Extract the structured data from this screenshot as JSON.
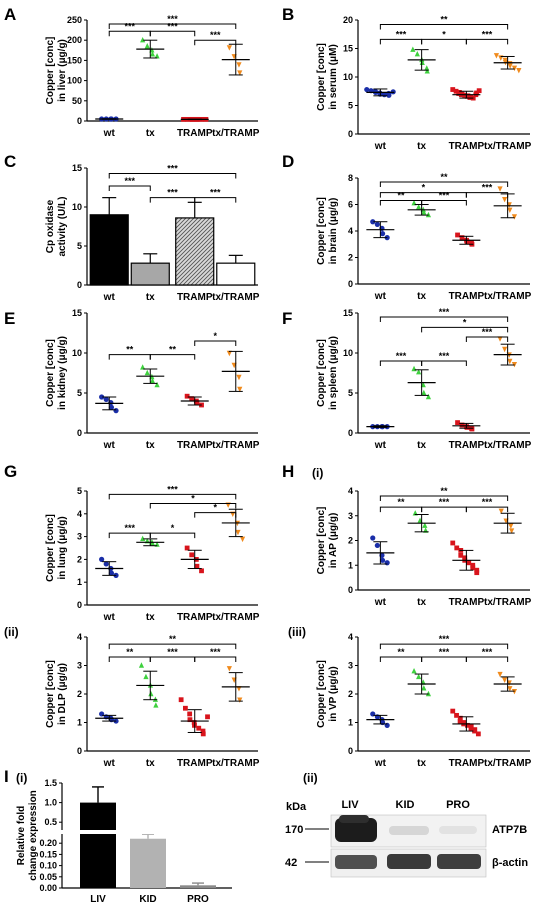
{
  "colors": {
    "wt": "#1a2ea8",
    "tx": "#3ed13e",
    "TRAMP": "#d8141c",
    "tx/TRAMP": "#f08a1c"
  },
  "chart_data": [
    {
      "id": "A",
      "type": "scatter",
      "panel_label": "A",
      "sub_label": "",
      "ylabel": [
        "Copper [conc]",
        "in liver (μg/g)"
      ],
      "categories": [
        "wt",
        "tx",
        "TRAMP",
        "tx/TRAMP"
      ],
      "ylim": [
        0,
        250
      ],
      "yticks": [
        0,
        50,
        100,
        150,
        200,
        250
      ],
      "groups": [
        {
          "name": "wt",
          "mean": 5,
          "sd": 0.5,
          "points": [
            5,
            5,
            5,
            5,
            5
          ]
        },
        {
          "name": "tx",
          "mean": 178,
          "sd": 22,
          "points": [
            200,
            185,
            175,
            165,
            160
          ]
        },
        {
          "name": "TRAMP",
          "mean": 4,
          "sd": 0.5,
          "points": [
            4,
            4,
            4,
            4,
            4,
            4,
            4,
            4
          ]
        },
        {
          "name": "tx/TRAMP",
          "mean": 152,
          "sd": 38,
          "points": [
            182,
            160,
            140,
            120
          ]
        }
      ],
      "brackets": [
        {
          "from": 0,
          "to": 3,
          "y": 240,
          "label": "***"
        },
        {
          "from": 0,
          "to": 1,
          "y": 222,
          "label": "***"
        },
        {
          "from": 1,
          "to": 2,
          "y": 222,
          "label": "***"
        },
        {
          "from": 2,
          "to": 3,
          "y": 200,
          "label": "***"
        }
      ]
    },
    {
      "id": "B",
      "type": "scatter",
      "panel_label": "B",
      "sub_label": "",
      "ylabel": [
        "Copper [conc]",
        "in serum (μM)"
      ],
      "categories": [
        "wt",
        "tx",
        "TRAMP",
        "tx/TRAMP"
      ],
      "ylim": [
        0,
        20
      ],
      "yticks": [
        0,
        5,
        10,
        15,
        20
      ],
      "groups": [
        {
          "name": "wt",
          "mean": 7.3,
          "sd": 0.6,
          "points": [
            7.8,
            7.6,
            7.5,
            7.3,
            7.2,
            7,
            6.9,
            7.1,
            6.8,
            7.4
          ]
        },
        {
          "name": "tx",
          "mean": 13,
          "sd": 1.8,
          "points": [
            14.8,
            14,
            13,
            12.5,
            11.5,
            11
          ]
        },
        {
          "name": "TRAMP",
          "mean": 6.9,
          "sd": 0.6,
          "points": [
            7.8,
            7.5,
            7.3,
            7.1,
            7,
            6.9,
            6.8,
            6.7,
            6.6,
            6.5,
            6.4,
            6.3,
            7.2,
            6.9,
            7.6
          ]
        },
        {
          "name": "tx/TRAMP",
          "mean": 12.5,
          "sd": 1.1,
          "points": [
            13.8,
            13.4,
            13,
            12.6,
            12.4,
            12,
            11.6,
            11.2
          ]
        }
      ],
      "brackets": [
        {
          "from": 0,
          "to": 3,
          "y": 19.2,
          "label": "**"
        },
        {
          "from": 0,
          "to": 1,
          "y": 16.6,
          "label": "***"
        },
        {
          "from": 1,
          "to": 2,
          "y": 16.6,
          "label": "*"
        },
        {
          "from": 2,
          "to": 3,
          "y": 16.6,
          "label": "***"
        }
      ]
    },
    {
      "id": "C",
      "type": "bar",
      "panel_label": "C",
      "sub_label": "",
      "ylabel": [
        "Cp oxidase",
        "activity (U/L)"
      ],
      "categories": [
        "wt",
        "tx",
        "TRAMP",
        "tx/TRAMP"
      ],
      "ylim": [
        0,
        15
      ],
      "yticks": [
        0,
        5,
        10,
        15
      ],
      "values": [
        9,
        2.8,
        8.6,
        2.8
      ],
      "errors": [
        2.2,
        1.2,
        2.0,
        1.0
      ],
      "brackets": [
        {
          "from": 0,
          "to": 3,
          "y": 14.3,
          "label": "***"
        },
        {
          "from": 0,
          "to": 1,
          "y": 12.7,
          "label": "***"
        },
        {
          "from": 1,
          "to": 2,
          "y": 11.2,
          "label": "***"
        },
        {
          "from": 2,
          "to": 3,
          "y": 11.2,
          "label": "***"
        }
      ]
    },
    {
      "id": "D",
      "type": "scatter",
      "panel_label": "D",
      "sub_label": "",
      "ylabel": [
        "Copper [conc]",
        "in brain (μg/g)"
      ],
      "categories": [
        "wt",
        "tx",
        "TRAMP",
        "tx/TRAMP"
      ],
      "ylim": [
        0,
        8
      ],
      "yticks": [
        0,
        2,
        4,
        6,
        8
      ],
      "groups": [
        {
          "name": "wt",
          "mean": 4.1,
          "sd": 0.6,
          "points": [
            4.7,
            4.5,
            4.2,
            3.8,
            3.5
          ]
        },
        {
          "name": "tx",
          "mean": 5.6,
          "sd": 0.4,
          "points": [
            6.1,
            5.8,
            5.6,
            5.4,
            5.2
          ]
        },
        {
          "name": "TRAMP",
          "mean": 3.3,
          "sd": 0.3,
          "points": [
            3.7,
            3.5,
            3.3,
            3.2,
            3.1,
            3.0
          ]
        },
        {
          "name": "tx/TRAMP",
          "mean": 5.9,
          "sd": 0.9,
          "points": [
            7.2,
            6.4,
            6,
            5.6,
            5.1
          ]
        }
      ],
      "brackets": [
        {
          "from": 0,
          "to": 3,
          "y": 7.7,
          "label": "**"
        },
        {
          "from": 0,
          "to": 2,
          "y": 6.9,
          "label": "*"
        },
        {
          "from": 2,
          "to": 3,
          "y": 6.9,
          "label": "***"
        },
        {
          "from": 0,
          "to": 1,
          "y": 6.3,
          "label": "**"
        },
        {
          "from": 1,
          "to": 2,
          "y": 6.3,
          "label": "***"
        }
      ]
    },
    {
      "id": "E",
      "type": "scatter",
      "panel_label": "E",
      "sub_label": "",
      "ylabel": [
        "Copper [conc]",
        "in kidney (μg/g)"
      ],
      "categories": [
        "wt",
        "tx",
        "TRAMP",
        "tx/TRAMP"
      ],
      "ylim": [
        0,
        15
      ],
      "yticks": [
        0,
        5,
        10,
        15
      ],
      "groups": [
        {
          "name": "wt",
          "mean": 3.7,
          "sd": 0.8,
          "points": [
            4.5,
            4.2,
            3.8,
            3.2,
            2.8
          ]
        },
        {
          "name": "tx",
          "mean": 7.1,
          "sd": 0.9,
          "points": [
            8.2,
            7.5,
            7,
            6.5,
            6
          ]
        },
        {
          "name": "TRAMP",
          "mean": 4,
          "sd": 0.5,
          "points": [
            4.6,
            4.3,
            4,
            3.8,
            3.5
          ]
        },
        {
          "name": "tx/TRAMP",
          "mean": 7.7,
          "sd": 2.5,
          "points": [
            10,
            8.5,
            7,
            5.5
          ]
        }
      ],
      "brackets": [
        {
          "from": 0,
          "to": 1,
          "y": 9.8,
          "label": "**"
        },
        {
          "from": 1,
          "to": 2,
          "y": 9.8,
          "label": "**"
        },
        {
          "from": 2,
          "to": 3,
          "y": 11.5,
          "label": "*"
        }
      ]
    },
    {
      "id": "F",
      "type": "scatter",
      "panel_label": "F",
      "sub_label": "",
      "ylabel": [
        "Copper [conc]",
        "in spleen (μg/g)"
      ],
      "categories": [
        "wt",
        "tx",
        "TRAMP",
        "tx/TRAMP"
      ],
      "ylim": [
        0,
        15
      ],
      "yticks": [
        0,
        5,
        10,
        15
      ],
      "groups": [
        {
          "name": "wt",
          "mean": 0.8,
          "sd": 0.1,
          "points": [
            0.8,
            0.8,
            0.8,
            0.8,
            0.8
          ]
        },
        {
          "name": "tx",
          "mean": 6.3,
          "sd": 1.6,
          "points": [
            8,
            7.6,
            6,
            5,
            4.5
          ]
        },
        {
          "name": "TRAMP",
          "mean": 0.9,
          "sd": 0.3,
          "points": [
            1.3,
            1,
            0.8,
            0.7,
            0.6,
            0.5
          ]
        },
        {
          "name": "tx/TRAMP",
          "mean": 9.8,
          "sd": 1.3,
          "points": [
            11.8,
            10.5,
            9.8,
            9,
            8.6
          ]
        }
      ],
      "brackets": [
        {
          "from": 0,
          "to": 3,
          "y": 14.5,
          "label": "***"
        },
        {
          "from": 1,
          "to": 3,
          "y": 13.2,
          "label": "*"
        },
        {
          "from": 2,
          "to": 3,
          "y": 12,
          "label": "***"
        },
        {
          "from": 0,
          "to": 1,
          "y": 9,
          "label": "***"
        },
        {
          "from": 1,
          "to": 2,
          "y": 9,
          "label": "***"
        }
      ]
    },
    {
      "id": "G",
      "type": "scatter",
      "panel_label": "G",
      "sub_label": "",
      "ylabel": [
        "Copper [conc]",
        "in lung (μg/g)"
      ],
      "categories": [
        "wt",
        "tx",
        "TRAMP",
        "tx/TRAMP"
      ],
      "ylim": [
        0,
        5
      ],
      "yticks": [
        0,
        1,
        2,
        3,
        4,
        5
      ],
      "groups": [
        {
          "name": "wt",
          "mean": 1.6,
          "sd": 0.3,
          "points": [
            2,
            1.8,
            1.6,
            1.4,
            1.3
          ]
        },
        {
          "name": "tx",
          "mean": 2.75,
          "sd": 0.15,
          "points": [
            2.9,
            2.8,
            2.75,
            2.7,
            2.65
          ]
        },
        {
          "name": "TRAMP",
          "mean": 2,
          "sd": 0.4,
          "points": [
            2.5,
            2.2,
            2,
            1.7,
            1.5
          ]
        },
        {
          "name": "tx/TRAMP",
          "mean": 3.6,
          "sd": 0.6,
          "points": [
            4.4,
            4,
            3.6,
            3.2,
            2.9
          ]
        }
      ],
      "brackets": [
        {
          "from": 0,
          "to": 3,
          "y": 4.85,
          "label": "***"
        },
        {
          "from": 1,
          "to": 3,
          "y": 4.45,
          "label": "*"
        },
        {
          "from": 2,
          "to": 3,
          "y": 4.05,
          "label": "*"
        },
        {
          "from": 0,
          "to": 1,
          "y": 3.15,
          "label": "***"
        },
        {
          "from": 1,
          "to": 2,
          "y": 3.15,
          "label": "*"
        }
      ]
    },
    {
      "id": "H",
      "type": "scatter",
      "panel_label": "H",
      "sub_label": "(i)",
      "ylabel": [
        "Copper [conc]",
        "in AP (μg/g)"
      ],
      "categories": [
        "wt",
        "tx",
        "TRAMP",
        "tx/TRAMP"
      ],
      "ylim": [
        0,
        4
      ],
      "yticks": [
        0,
        1,
        2,
        3,
        4
      ],
      "groups": [
        {
          "name": "wt",
          "mean": 1.5,
          "sd": 0.45,
          "points": [
            2.1,
            1.8,
            1.4,
            1.2,
            1.1
          ]
        },
        {
          "name": "tx",
          "mean": 2.7,
          "sd": 0.35,
          "points": [
            3.1,
            2.8,
            2.6,
            2.4
          ]
        },
        {
          "name": "TRAMP",
          "mean": 1.2,
          "sd": 0.4,
          "points": [
            1.9,
            1.7,
            1.6,
            1.4,
            1.3,
            1.2,
            1.1,
            1.0,
            0.9,
            0.8,
            0.7
          ]
        },
        {
          "name": "tx/TRAMP",
          "mean": 2.7,
          "sd": 0.4,
          "points": [
            3.2,
            2.8,
            2.6,
            2.4
          ]
        }
      ],
      "brackets": [
        {
          "from": 0,
          "to": 3,
          "y": 3.8,
          "label": "**"
        },
        {
          "from": 0,
          "to": 1,
          "y": 3.35,
          "label": "**"
        },
        {
          "from": 1,
          "to": 2,
          "y": 3.35,
          "label": "***"
        },
        {
          "from": 2,
          "to": 3,
          "y": 3.35,
          "label": "***"
        }
      ]
    },
    {
      "id": "Hii",
      "type": "scatter",
      "panel_label": "",
      "sub_label": "(ii)",
      "ylabel": [
        "Copper [conc]",
        "in DLP (μg/g)"
      ],
      "categories": [
        "wt",
        "tx",
        "TRAMP",
        "tx/TRAMP"
      ],
      "ylim": [
        0,
        4
      ],
      "yticks": [
        0,
        1,
        2,
        3,
        4
      ],
      "groups": [
        {
          "name": "wt",
          "mean": 1.15,
          "sd": 0.1,
          "points": [
            1.3,
            1.2,
            1.15,
            1.1,
            1.05
          ]
        },
        {
          "name": "tx",
          "mean": 2.3,
          "sd": 0.5,
          "points": [
            3,
            2.6,
            2.3,
            2,
            1.8,
            1.6
          ]
        },
        {
          "name": "TRAMP",
          "mean": 1.05,
          "sd": 0.4,
          "points": [
            1.8,
            1.5,
            1.3,
            1.1,
            1,
            0.9,
            0.8,
            0.7,
            0.6,
            1.2
          ]
        },
        {
          "name": "tx/TRAMP",
          "mean": 2.25,
          "sd": 0.5,
          "points": [
            2.9,
            2.5,
            2.2,
            1.8
          ]
        }
      ],
      "brackets": [
        {
          "from": 0,
          "to": 3,
          "y": 3.75,
          "label": "**"
        },
        {
          "from": 0,
          "to": 1,
          "y": 3.3,
          "label": "**"
        },
        {
          "from": 1,
          "to": 2,
          "y": 3.3,
          "label": "***"
        },
        {
          "from": 2,
          "to": 3,
          "y": 3.3,
          "label": "***"
        }
      ]
    },
    {
      "id": "Hiii",
      "type": "scatter",
      "panel_label": "",
      "sub_label": "(iii)",
      "ylabel": [
        "Copper [conc]",
        "in VP (μg/g)"
      ],
      "categories": [
        "wt",
        "tx",
        "TRAMP",
        "tx/TRAMP"
      ],
      "ylim": [
        0,
        4
      ],
      "yticks": [
        0,
        1,
        2,
        3,
        4
      ],
      "groups": [
        {
          "name": "wt",
          "mean": 1.1,
          "sd": 0.15,
          "points": [
            1.3,
            1.2,
            1.1,
            1,
            0.9
          ]
        },
        {
          "name": "tx",
          "mean": 2.35,
          "sd": 0.35,
          "points": [
            2.8,
            2.6,
            2.4,
            2.2,
            2
          ]
        },
        {
          "name": "TRAMP",
          "mean": 0.95,
          "sd": 0.25,
          "points": [
            1.4,
            1.25,
            1.15,
            1.05,
            1,
            0.95,
            0.9,
            0.85,
            0.8,
            0.75,
            0.7,
            0.6
          ]
        },
        {
          "name": "tx/TRAMP",
          "mean": 2.35,
          "sd": 0.25,
          "points": [
            2.7,
            2.5,
            2.4,
            2.2,
            2.1
          ]
        }
      ],
      "brackets": [
        {
          "from": 0,
          "to": 3,
          "y": 3.75,
          "label": "***"
        },
        {
          "from": 0,
          "to": 1,
          "y": 3.3,
          "label": "**"
        },
        {
          "from": 1,
          "to": 2,
          "y": 3.3,
          "label": "***"
        },
        {
          "from": 2,
          "to": 3,
          "y": 3.3,
          "label": "***"
        }
      ]
    },
    {
      "id": "I",
      "type": "bar",
      "panel_label": "I",
      "sub_label": "(i)",
      "ylabel": [
        "Relative fold",
        "change expression"
      ],
      "categories": [
        "LIV",
        "KID",
        "PRO"
      ],
      "ytick_labels": [
        "0.00",
        "0.05",
        "0.10",
        "0.15",
        "0.20",
        "0.25",
        "0.5",
        "1.0",
        "1.5"
      ],
      "values": [
        1.0,
        0.22,
        0.012
      ],
      "errors": [
        0.4,
        0.02,
        0.01
      ],
      "bar_colors": [
        "#000000",
        "#b2b2b2",
        "#8a8a8a"
      ]
    }
  ],
  "western_blot": {
    "sub_label": "(ii)",
    "kda_label": "kDa",
    "lanes": [
      "LIV",
      "KID",
      "PRO"
    ],
    "bands": [
      {
        "marker": "170",
        "name": "ATP7B"
      },
      {
        "marker": "42",
        "name": "β-actin"
      }
    ]
  }
}
